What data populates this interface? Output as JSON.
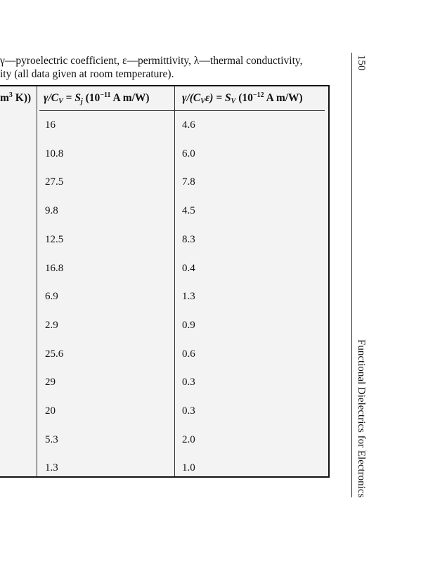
{
  "caption": {
    "lines": [
      "γ—pyroelectric coefficient, ε—permittivity, λ—thermal conductivity,",
      "ity (all data given at room temperature)."
    ]
  },
  "table": {
    "headers": [
      [
        "m",
        "3",
        " K))"
      ],
      [
        "γ/C",
        "V",
        " = ",
        "S",
        "j",
        " (10",
        "−11",
        " A m/W)"
      ],
      [
        "γ/(C",
        "V",
        "ε) = ",
        "S",
        "V",
        " (10",
        "−12",
        " A m/W)"
      ]
    ],
    "rows": [
      [
        "16",
        "4.6"
      ],
      [
        "10.8",
        "6.0"
      ],
      [
        "27.5",
        "7.8"
      ],
      [
        "9.8",
        "4.5"
      ],
      [
        "12.5",
        "8.3"
      ],
      [
        "16.8",
        "0.4"
      ],
      [
        "6.9",
        "1.3"
      ],
      [
        "2.9",
        "0.9"
      ],
      [
        "25.6",
        "0.6"
      ],
      [
        "29",
        "0.3"
      ],
      [
        "20",
        "0.3"
      ],
      [
        "5.3",
        "2.0"
      ],
      [
        "1.3",
        "1.0"
      ]
    ]
  },
  "running_head": {
    "page": "150",
    "title": "Functional Dielectrics for Electronics"
  }
}
